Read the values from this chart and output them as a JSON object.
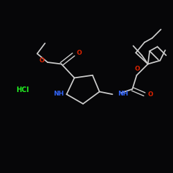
{
  "background": "#060608",
  "bond_color": "#cccccc",
  "bond_width": 1.3,
  "o_color": "#dd2200",
  "n_color": "#3366ff",
  "hcl_color": "#22ee22",
  "font_size": 6.5,
  "figsize": [
    2.5,
    2.5
  ],
  "dpi": 100,
  "xlim": [
    0.0,
    10.0
  ],
  "ylim": [
    2.0,
    10.0
  ]
}
